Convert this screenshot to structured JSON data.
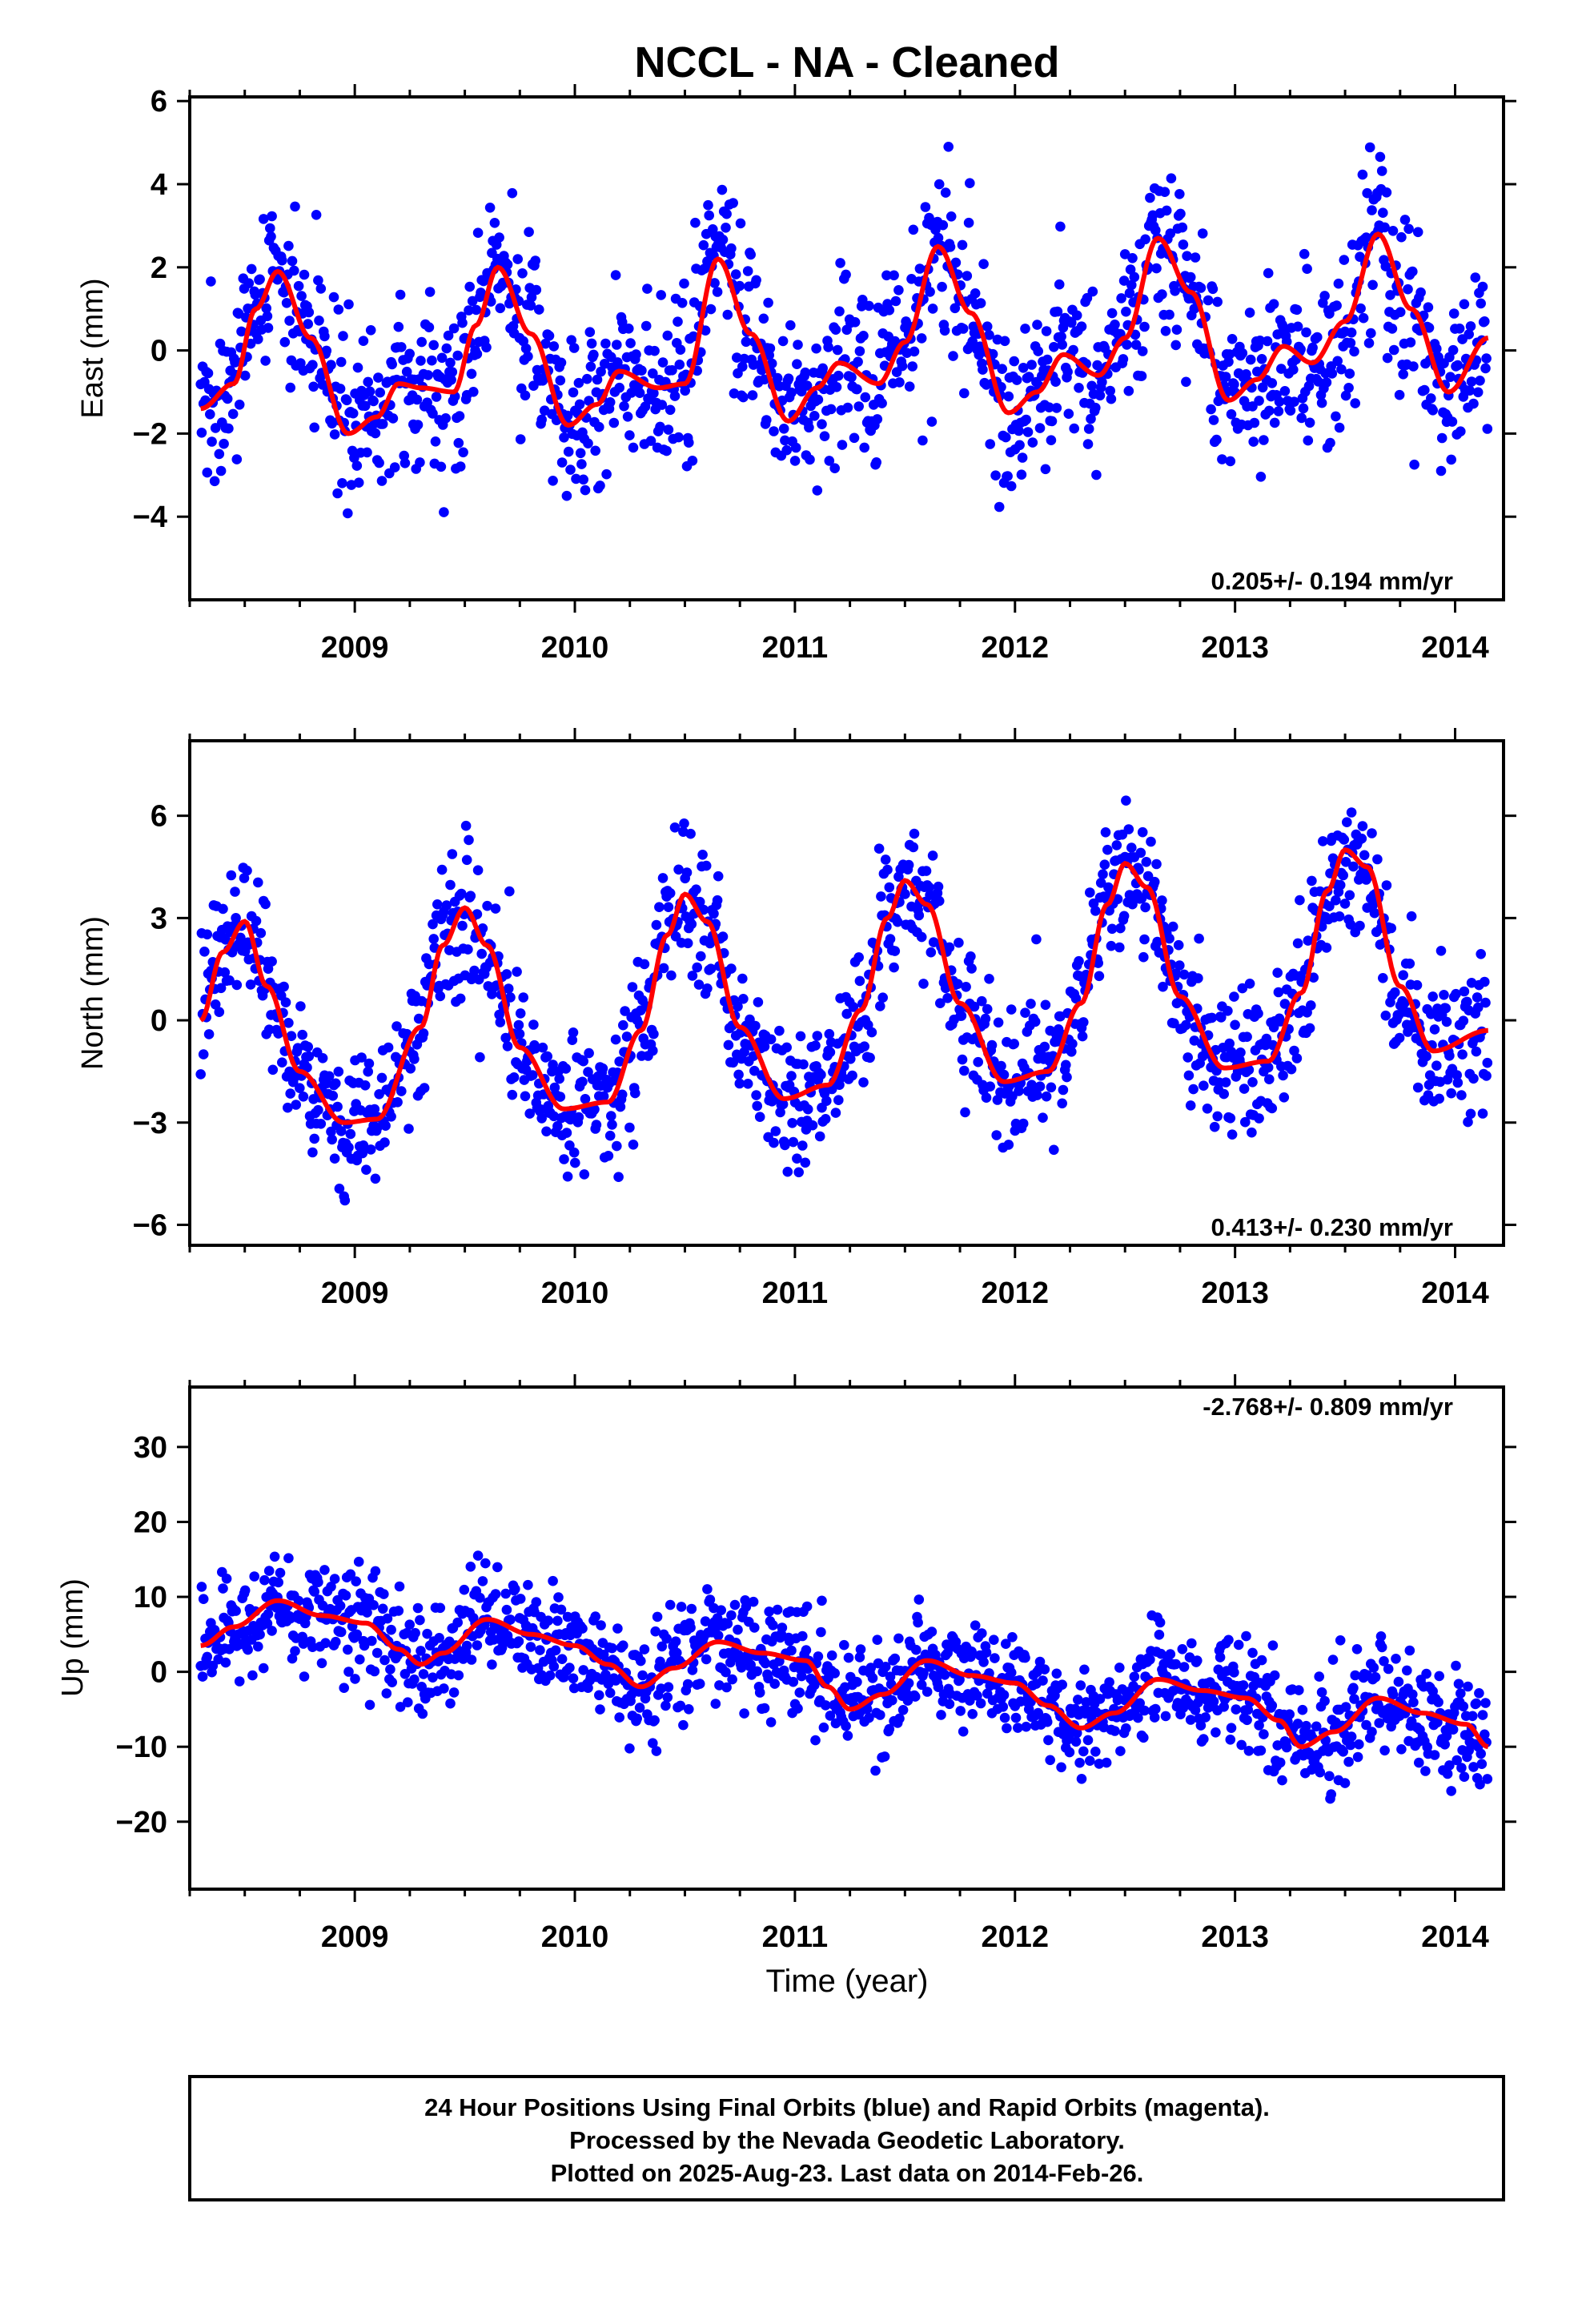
{
  "chart_data": {
    "type": "scatter",
    "title": "NCCL  - NA - Cleaned",
    "xlabel": "Time (year)",
    "x_ticks": [
      "2009",
      "2010",
      "2011",
      "2012",
      "2013",
      "2014"
    ],
    "xlim": [
      2008.25,
      2014.22
    ],
    "colors": {
      "points": "#0000ff",
      "fit": "#ff0000"
    },
    "panels": [
      {
        "ylabel": "East (mm)",
        "ylim": [
          -6,
          6.1
        ],
        "y_ticks": [
          -4,
          -2,
          0,
          2,
          4,
          6
        ],
        "rate": "0.205+/- 0.194 mm/yr",
        "rate_position": "bottom-right",
        "fit_curve": {
          "x": [
            2008.3,
            2008.45,
            2008.55,
            2008.65,
            2008.8,
            2008.97,
            2009.1,
            2009.2,
            2009.3,
            2009.45,
            2009.55,
            2009.65,
            2009.8,
            2009.97,
            2010.1,
            2010.2,
            2010.38,
            2010.5,
            2010.65,
            2010.8,
            2010.97,
            2011.1,
            2011.2,
            2011.38,
            2011.5,
            2011.65,
            2011.8,
            2011.97,
            2012.1,
            2012.22,
            2012.38,
            2012.5,
            2012.65,
            2012.8,
            2012.97,
            2013.1,
            2013.22,
            2013.35,
            2013.5,
            2013.65,
            2013.8,
            2013.97,
            2014.15
          ],
          "y": [
            -1.4,
            -0.8,
            1.0,
            1.9,
            0.3,
            -2.0,
            -1.6,
            -0.8,
            -0.9,
            -1.0,
            0.6,
            2.0,
            0.4,
            -1.8,
            -1.3,
            -0.5,
            -0.9,
            -0.8,
            2.2,
            0.4,
            -1.7,
            -0.9,
            -0.3,
            -0.8,
            0.2,
            2.5,
            0.9,
            -1.5,
            -1.0,
            -0.1,
            -0.6,
            0.3,
            2.7,
            1.4,
            -1.2,
            -0.7,
            0.1,
            -0.3,
            0.7,
            2.8,
            1.0,
            -1.0,
            0.3
          ]
        }
      },
      {
        "ylabel": "North (mm)",
        "ylim": [
          -6.6,
          8.2
        ],
        "y_ticks": [
          -6,
          -3,
          0,
          3,
          6
        ],
        "rate": "0.413+/- 0.230 mm/yr",
        "rate_position": "bottom-right",
        "fit_curve": {
          "x": [
            2008.3,
            2008.4,
            2008.5,
            2008.6,
            2008.75,
            2008.95,
            2009.1,
            2009.3,
            2009.4,
            2009.5,
            2009.6,
            2009.75,
            2009.95,
            2010.15,
            2010.3,
            2010.42,
            2010.5,
            2010.6,
            2010.75,
            2010.95,
            2011.15,
            2011.3,
            2011.42,
            2011.5,
            2011.6,
            2011.75,
            2011.95,
            2012.15,
            2012.3,
            2012.42,
            2012.5,
            2012.6,
            2012.75,
            2012.95,
            2013.15,
            2013.3,
            2013.42,
            2013.5,
            2013.6,
            2013.75,
            2013.9,
            2014.15
          ],
          "y": [
            0.0,
            2.0,
            2.9,
            1.0,
            -1.5,
            -3.0,
            -2.9,
            -0.2,
            2.2,
            3.3,
            2.2,
            -0.8,
            -2.6,
            -2.4,
            -0.3,
            2.5,
            3.7,
            2.9,
            -0.2,
            -2.3,
            -1.9,
            0.3,
            3.0,
            4.1,
            3.4,
            0.5,
            -1.8,
            -1.5,
            0.5,
            3.4,
            4.6,
            3.9,
            0.7,
            -1.4,
            -1.2,
            0.8,
            3.8,
            5.0,
            4.5,
            1.0,
            -0.9,
            -0.3
          ]
        }
      },
      {
        "ylabel": "Up (mm)",
        "ylim": [
          -29,
          38
        ],
        "y_ticks": [
          -20,
          -10,
          0,
          10,
          20,
          30
        ],
        "rate": "-2.768+/- 0.809 mm/yr",
        "rate_position": "top-right",
        "fit_curve": {
          "x": [
            2008.3,
            2008.45,
            2008.65,
            2008.85,
            2009.05,
            2009.2,
            2009.3,
            2009.4,
            2009.6,
            2009.8,
            2010.0,
            2010.15,
            2010.3,
            2010.45,
            2010.65,
            2010.85,
            2011.05,
            2011.15,
            2011.25,
            2011.4,
            2011.6,
            2011.8,
            2012.0,
            2012.15,
            2012.3,
            2012.45,
            2012.65,
            2012.85,
            2013.05,
            2013.2,
            2013.3,
            2013.45,
            2013.65,
            2013.85,
            2014.05,
            2014.15
          ],
          "y": [
            3.5,
            6.0,
            9.5,
            7.5,
            6.5,
            3.0,
            1.0,
            2.5,
            7.0,
            5.0,
            3.5,
            1.0,
            -2.0,
            0.5,
            4.0,
            2.5,
            1.5,
            -2.0,
            -5.0,
            -3.0,
            1.5,
            -0.5,
            -1.5,
            -4.5,
            -7.5,
            -5.5,
            -1.0,
            -2.5,
            -3.5,
            -6.5,
            -10.0,
            -8.0,
            -3.5,
            -5.5,
            -7.0,
            -10.0
          ]
        }
      }
    ]
  },
  "footer": {
    "lines": [
      "24 Hour Positions Using Final Orbits (blue) and Rapid Orbits (magenta).",
      "Processed by the Nevada Geodetic Laboratory.",
      "Plotted on 2025-Aug-23. Last data on 2014-Feb-26."
    ]
  }
}
